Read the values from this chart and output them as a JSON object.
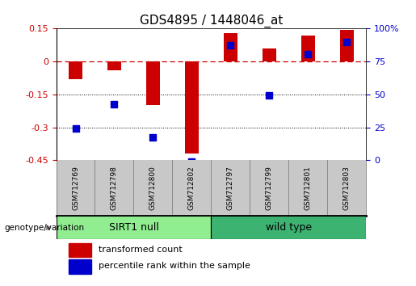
{
  "title": "GDS4895 / 1448046_at",
  "samples": [
    "GSM712769",
    "GSM712798",
    "GSM712800",
    "GSM712802",
    "GSM712797",
    "GSM712799",
    "GSM712801",
    "GSM712803"
  ],
  "red_bars": [
    -0.08,
    -0.04,
    -0.2,
    -0.42,
    0.13,
    0.06,
    0.12,
    0.145
  ],
  "blue_vals": [
    -0.305,
    -0.195,
    -0.345,
    -0.455,
    0.075,
    -0.155,
    0.035,
    0.09
  ],
  "ylim_left": [
    -0.45,
    0.15
  ],
  "ylim_right": [
    0,
    100
  ],
  "yticks_left": [
    0.15,
    0.0,
    -0.15,
    -0.3,
    -0.45
  ],
  "yticks_right": [
    100,
    75,
    50,
    25,
    0
  ],
  "dotted_hlines": [
    -0.15,
    -0.3
  ],
  "hline_zero": 0.0,
  "bar_color": "#CC0000",
  "dot_color": "#0000CC",
  "sirt1_color": "#90EE90",
  "wildtype_color": "#3CB371",
  "sample_bg": "#C8C8C8",
  "background_color": "#FFFFFF",
  "genotype_label": "genotype/variation",
  "group1_label": "SIRT1 null",
  "group2_label": "wild type",
  "legend_red": "transformed count",
  "legend_blue": "percentile rank within the sample",
  "title_fontsize": 11,
  "tick_fontsize": 8,
  "sample_fontsize": 6.5,
  "group_fontsize": 9,
  "legend_fontsize": 8,
  "bar_width": 0.35,
  "dot_size": 32
}
